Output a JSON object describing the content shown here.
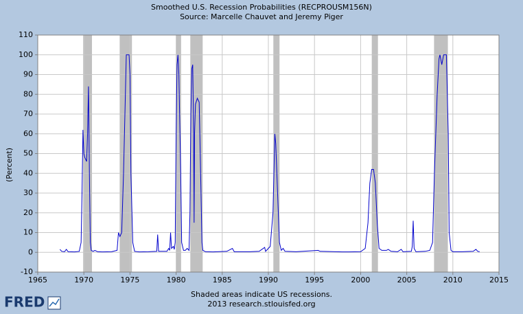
{
  "chart_data": {
    "type": "line",
    "title": "Smoothed U.S. Recession Probabilities (RECPROUSM156N)",
    "subtitle": "Source: Marcelle Chauvet and Jeremy Piger",
    "y_label": "(Percent)",
    "footnote": "Shaded areas indicate US recessions.",
    "source": "2013 research.stlouisfed.org",
    "logo": "FRED",
    "color": "#0000cc",
    "shade_color": "#c0c0c0",
    "grid": true,
    "xlim": [
      1965,
      2015
    ],
    "xticks": [
      1965,
      1970,
      1975,
      1980,
      1985,
      1990,
      1995,
      2000,
      2005,
      2010,
      2015
    ],
    "ylim": [
      -10,
      110
    ],
    "yticks": [
      -10,
      0,
      10,
      20,
      30,
      40,
      50,
      60,
      70,
      80,
      90,
      100,
      110
    ],
    "shaded_periods": [
      [
        1969.92,
        1970.88
      ],
      [
        1973.88,
        1975.21
      ],
      [
        1980.0,
        1980.54
      ],
      [
        1981.54,
        1982.88
      ],
      [
        1990.54,
        1991.21
      ],
      [
        2001.21,
        2001.88
      ],
      [
        2007.96,
        2009.46
      ]
    ],
    "x": [
      1967.4,
      1967.6,
      1967.9,
      1968.1,
      1968.3,
      1969.0,
      1969.5,
      1969.7,
      1969.8,
      1969.9,
      1970.0,
      1970.1,
      1970.3,
      1970.4,
      1970.5,
      1970.6,
      1970.7,
      1970.8,
      1971.0,
      1971.2,
      1971.5,
      1972.0,
      1973.0,
      1973.6,
      1973.75,
      1973.9,
      1974.1,
      1974.3,
      1974.5,
      1974.6,
      1974.9,
      1975.0,
      1975.1,
      1975.3,
      1975.5,
      1976.0,
      1977.0,
      1977.9,
      1978.0,
      1978.1,
      1979.0,
      1979.2,
      1979.3,
      1979.4,
      1979.5,
      1979.7,
      1979.8,
      1979.9,
      1980.0,
      1980.1,
      1980.2,
      1980.3,
      1980.5,
      1980.6,
      1980.8,
      1981.0,
      1981.2,
      1981.4,
      1981.5,
      1981.6,
      1981.7,
      1981.8,
      1981.9,
      1981.95,
      1982.0,
      1982.1,
      1982.3,
      1982.5,
      1982.7,
      1982.8,
      1982.9,
      1983.2,
      1984.0,
      1985.5,
      1986.1,
      1986.3,
      1987.0,
      1988.0,
      1989.0,
      1989.6,
      1989.7,
      1990.2,
      1990.5,
      1990.7,
      1990.8,
      1991.0,
      1991.2,
      1991.4,
      1991.6,
      1991.8,
      1993.0,
      1995.4,
      1995.6,
      1998.0,
      2000.0,
      2000.5,
      2000.8,
      2001.0,
      2001.2,
      2001.4,
      2001.6,
      2001.8,
      2002.0,
      2002.3,
      2002.8,
      2003.0,
      2003.3,
      2004.0,
      2004.4,
      2004.6,
      2005.5,
      2005.6,
      2005.7,
      2005.8,
      2006.0,
      2007.0,
      2007.5,
      2007.8,
      2008.0,
      2008.3,
      2008.5,
      2008.6,
      2008.8,
      2009.0,
      2009.3,
      2009.5,
      2009.6,
      2009.8,
      2010.0,
      2011.0,
      2012.2,
      2012.5,
      2012.7,
      2012.9
    ],
    "values": [
      1.5,
      0.5,
      0.3,
      1.5,
      0.3,
      0.2,
      0.5,
      5,
      30,
      62,
      50,
      48,
      46,
      60,
      84,
      40,
      5,
      1,
      0.5,
      1,
      0.3,
      0.2,
      0.3,
      1,
      10,
      8,
      10,
      40,
      80,
      100,
      100,
      90,
      40,
      5,
      0.5,
      0.2,
      0.3,
      0.5,
      9,
      0.5,
      0.5,
      2,
      1,
      10,
      2,
      3,
      1.5,
      5,
      60,
      95,
      100,
      90,
      40,
      5,
      1,
      1,
      2,
      1,
      20,
      70,
      93,
      95,
      60,
      15,
      60,
      75,
      78,
      76,
      30,
      5,
      1,
      0.3,
      0.2,
      0.5,
      2,
      0.3,
      0.3,
      0.3,
      0.5,
      2.5,
      0.5,
      3,
      20,
      60,
      55,
      30,
      5,
      1,
      2,
      0.5,
      0.3,
      1,
      0.5,
      0.2,
      0.3,
      2,
      15,
      35,
      42,
      42,
      35,
      15,
      2,
      1,
      1,
      1.5,
      0.5,
      0.3,
      1.5,
      0.3,
      0.5,
      3,
      16,
      2,
      0.3,
      0.5,
      1,
      5,
      40,
      80,
      98,
      100,
      95,
      100,
      100,
      60,
      10,
      1,
      0.3,
      0.3,
      0.5,
      1.5,
      0.5,
      0.3
    ]
  }
}
